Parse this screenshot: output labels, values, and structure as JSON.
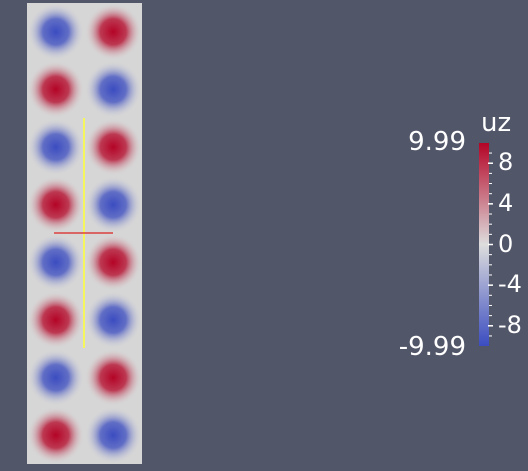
{
  "app": {
    "view": "3D render view"
  },
  "field": {
    "name": "uz",
    "range": [
      -9.99,
      9.99
    ],
    "grid_columns": 2,
    "grid_rows": 8,
    "pattern": "checkerboard",
    "top_left_sign": "negative"
  },
  "colorbar": {
    "title": "uz",
    "max_label": "9.99",
    "min_label": "-9.99",
    "ticks": [
      {
        "value": 8,
        "label": "8"
      },
      {
        "value": 4,
        "label": "4"
      },
      {
        "value": 0,
        "label": "0"
      },
      {
        "value": -4,
        "label": "-4"
      },
      {
        "value": -8,
        "label": "-8"
      }
    ],
    "colormap": "Cool to Warm",
    "colors": {
      "low": "#3b4cc0",
      "mid": "#dddddd",
      "high": "#b40426"
    }
  },
  "overlays": {
    "probe_line_color": "#ffff33",
    "cross_line_color": "#dd2222"
  }
}
